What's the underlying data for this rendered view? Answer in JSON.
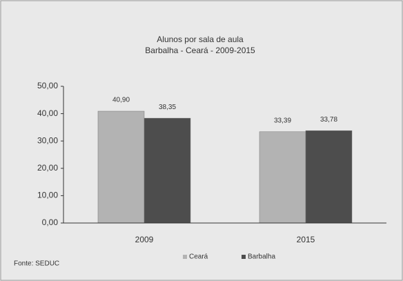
{
  "chart_data": {
    "type": "bar",
    "title": "Alunos por sala de aula",
    "subtitle": "Barbalha - Ceará - 2009-2015",
    "categories": [
      "2009",
      "2015"
    ],
    "series": [
      {
        "name": "Ceará",
        "color": "#b3b3b3",
        "values": [
          40.9,
          33.39
        ],
        "value_labels": [
          "40,90",
          "33,39"
        ]
      },
      {
        "name": "Barbalha",
        "color": "#4d4d4d",
        "values": [
          38.35,
          33.78
        ],
        "value_labels": [
          "38,35",
          "33,78"
        ]
      }
    ],
    "ylim": [
      0,
      50
    ],
    "yticks": [
      {
        "value": 0,
        "label": "0,00"
      },
      {
        "value": 10,
        "label": "10,00"
      },
      {
        "value": 20,
        "label": "20,00"
      },
      {
        "value": 30,
        "label": "30,00"
      },
      {
        "value": 40,
        "label": "40,00"
      },
      {
        "value": 50,
        "label": "50,00"
      }
    ],
    "source": "Fonte: SEDUC",
    "legend": "bottom"
  }
}
